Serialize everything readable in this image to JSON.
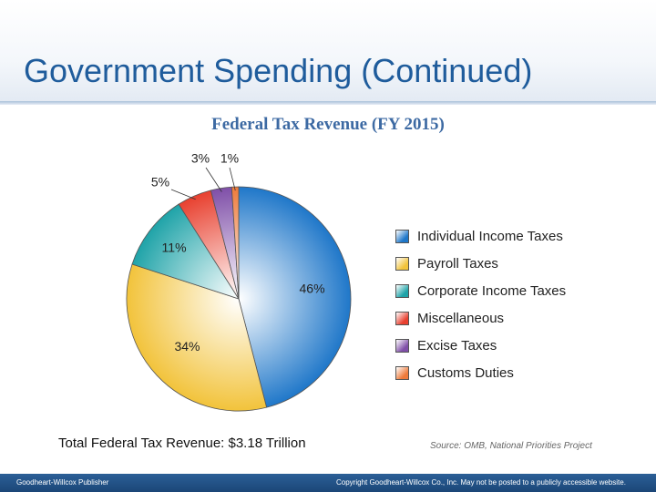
{
  "slide": {
    "title": "Government Spending (Continued)"
  },
  "chart_data": {
    "type": "pie",
    "title": "Federal Tax Revenue (FY 2015)",
    "total_label": "Total Federal Tax Revenue: $3.18 Trillion",
    "source": "Source: OMB, National Priorities Project",
    "legend_placement": "right",
    "categories": [
      "Individual Income Taxes",
      "Payroll Taxes",
      "Corporate Income Taxes",
      "Miscellaneous",
      "Excise Taxes",
      "Customs Duties"
    ],
    "values": [
      46,
      34,
      11,
      5,
      3,
      1
    ],
    "labels": [
      "46%",
      "34%",
      "11%",
      "5%",
      "3%",
      "1%"
    ],
    "colors": [
      "#1f77c9",
      "#f2c33b",
      "#1fa3a8",
      "#e8402f",
      "#7f4fa8",
      "#ee7a3a"
    ]
  },
  "footer": {
    "left": "Goodheart-Willcox Publisher",
    "right": "Copyright Goodheart-Willcox Co., Inc. May not be posted to a publicly accessible website."
  }
}
